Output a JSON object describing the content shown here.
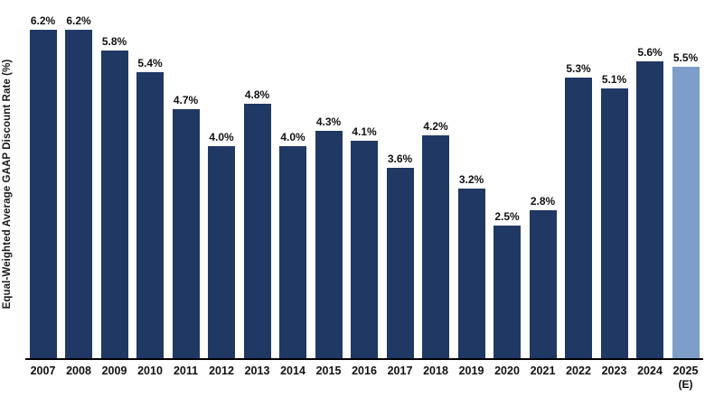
{
  "chart_data": {
    "type": "bar",
    "title": "",
    "xlabel": "",
    "ylabel": "Equal-Weighted Average GAAP Discount Rate (%)",
    "categories": [
      "2007",
      "2008",
      "2009",
      "2010",
      "2011",
      "2012",
      "2013",
      "2014",
      "2015",
      "2016",
      "2017",
      "2018",
      "2019",
      "2020",
      "2021",
      "2022",
      "2023",
      "2024",
      "2025"
    ],
    "category_sublabels": [
      "",
      "",
      "",
      "",
      "",
      "",
      "",
      "",
      "",
      "",
      "",
      "",
      "",
      "",
      "",
      "",
      "",
      "",
      "(E)"
    ],
    "values": [
      6.2,
      6.2,
      5.8,
      5.4,
      4.7,
      4.0,
      4.8,
      4.0,
      4.3,
      4.1,
      3.6,
      4.2,
      3.2,
      2.5,
      2.8,
      5.3,
      5.1,
      5.6,
      5.5
    ],
    "data_labels": [
      "6.2%",
      "6.2%",
      "5.8%",
      "5.4%",
      "4.7%",
      "4.0%",
      "4.8%",
      "4.0%",
      "4.3%",
      "4.1%",
      "3.6%",
      "4.2%",
      "3.2%",
      "2.5%",
      "2.8%",
      "5.3%",
      "5.1%",
      "5.6%",
      "5.5%"
    ],
    "ylim": [
      0,
      6.2
    ],
    "grid": "off",
    "legend": "none",
    "bar_color": "#203864",
    "estimate_bar_color": "#7D9EC9",
    "estimate_index": 18,
    "axis_color": "#000000",
    "label_color": "#111111"
  }
}
